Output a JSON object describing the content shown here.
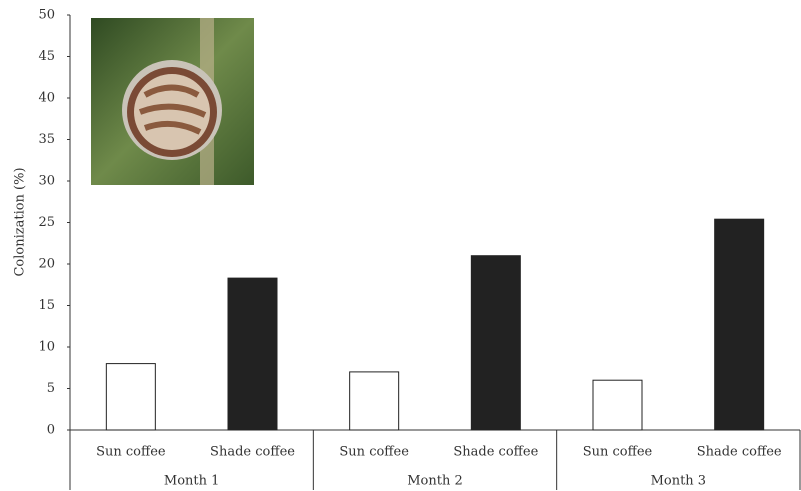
{
  "chart_data": {
    "type": "bar",
    "y_label": "Colonization (%)",
    "categories": [
      "Month 1",
      "Month 2",
      "Month 3"
    ],
    "series": [
      {
        "name": "Sun coffee",
        "color": "#ffffff",
        "values": [
          8,
          7,
          6
        ]
      },
      {
        "name": "Shade coffee",
        "color": "#222222",
        "values": [
          18.3,
          21,
          25.4
        ]
      }
    ],
    "ylim": [
      0,
      50
    ],
    "yticks": [
      0,
      5,
      10,
      15,
      20,
      25,
      30,
      35,
      40,
      45,
      50
    ],
    "grid": false
  }
}
